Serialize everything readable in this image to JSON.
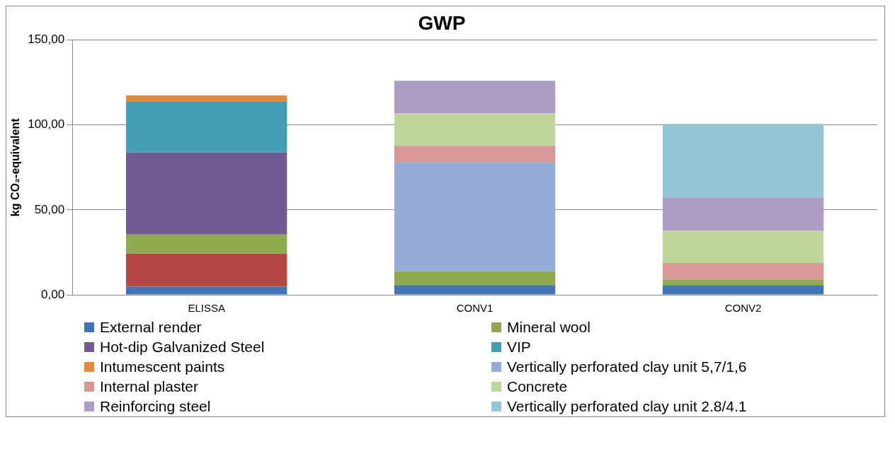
{
  "chart_data": {
    "type": "bar",
    "title": "GWP",
    "ylabel": "kg CO₂-equivalent",
    "categories": [
      "ELISSA",
      "CONV1",
      "CONV2"
    ],
    "stacked": true,
    "grid": "y",
    "legend": "bottom",
    "ylim": [
      0,
      150
    ],
    "yticks": [
      {
        "value": 0,
        "label": "0,00"
      },
      {
        "value": 50,
        "label": "50,00"
      },
      {
        "value": 100,
        "label": "100,00"
      },
      {
        "value": 150,
        "label": "150,00"
      }
    ],
    "series": [
      {
        "name": "External render",
        "color": "#4174b3",
        "values": [
          4.8,
          5.7,
          5.7
        ]
      },
      {
        "color": "#b54845",
        "values": [
          19.6,
          null,
          null
        ]
      },
      {
        "name": "Mineral wool",
        "color": "#8ea94e",
        "values": [
          11.1,
          8.2,
          3.4
        ]
      },
      {
        "name": "Hot-dip Galvanized  Steel",
        "color": "#735a92",
        "values": [
          48.4,
          null,
          null
        ]
      },
      {
        "name": "VIP",
        "color": "#429eb3",
        "values": [
          29.7,
          null,
          null
        ]
      },
      {
        "name": "Intumescent paints",
        "color": "#e48a3e",
        "values": [
          3.8,
          null,
          null
        ]
      },
      {
        "name": "Vertically perforated clay unit 5,7/1,6",
        "color": "#95aad4",
        "values": [
          null,
          64.2,
          null
        ]
      },
      {
        "name": "Internal plaster",
        "color": "#d89694",
        "values": [
          null,
          9.6,
          9.6
        ]
      },
      {
        "name": "Concrete",
        "color": "#bed59c",
        "values": [
          null,
          19.1,
          19.2
        ]
      },
      {
        "name": "Reinforcing steel",
        "color": "#ac9dc4",
        "values": [
          null,
          19.2,
          19.1
        ]
      },
      {
        "name": "Vertically perforated clay unit 2.8/4.1",
        "color": "#94c5d6",
        "values": [
          null,
          null,
          43.6
        ]
      }
    ]
  }
}
